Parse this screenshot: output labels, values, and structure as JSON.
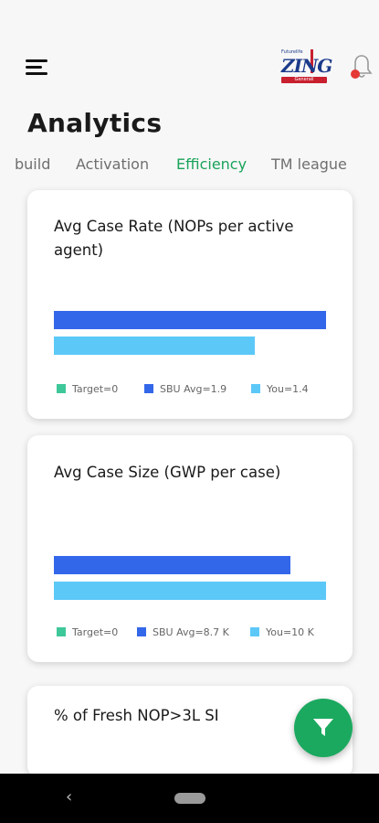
{
  "header": {
    "logo": {
      "tagline": "Futurelife",
      "word": "ZING",
      "strip": "Generali"
    }
  },
  "page": {
    "title": "Analytics"
  },
  "tabs": [
    {
      "label": "build",
      "active": false
    },
    {
      "label": "Activation",
      "active": false
    },
    {
      "label": "Efficiency",
      "active": true
    },
    {
      "label": "TM league",
      "active": false
    }
  ],
  "cards": [
    {
      "title": "Avg Case Rate (NOPs per active agent)",
      "legend": [
        "Target=0",
        "SBU Avg=1.9",
        "You=1.4"
      ],
      "chart_data": {
        "type": "bar",
        "orientation": "horizontal",
        "categories": [
          "SBU Avg",
          "You"
        ],
        "values": [
          1.9,
          1.4
        ]
      }
    },
    {
      "title": "Avg Case Size (GWP per case)",
      "legend": [
        "Target=0",
        "SBU Avg=8.7 K",
        "You=10 K"
      ],
      "chart_data": {
        "type": "bar",
        "orientation": "horizontal",
        "categories": [
          "SBU Avg",
          "You"
        ],
        "values": [
          8.7,
          10
        ]
      }
    },
    {
      "title": "% of Fresh NOP>3L SI"
    }
  ],
  "colors": {
    "accent_green": "#1aa35a",
    "bar_dark": "#3367ea",
    "bar_light": "#5cc8f8",
    "legend_target": "#3ec89a"
  },
  "fab": {
    "icon": "filter-icon"
  },
  "navbar": {
    "back_icon": "back-icon",
    "home_icon": "home-pill-icon"
  }
}
